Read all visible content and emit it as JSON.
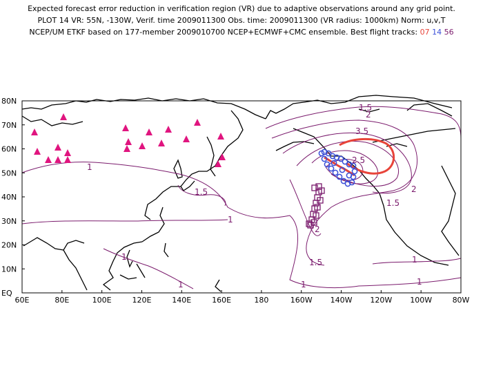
{
  "header": {
    "line1": "Expected forecast error reduction in verification region (VR) due to adaptive observations around any grid point.",
    "line2": "PLOT 14 VR: 55N, -130W, Verif. time 2009011300 Obs. time: 2009011300 (VR radius: 1000km) Norm: u,v,T",
    "line3": "NCEP/UM ETKF based on 177-member 2009010700 NCEP+ECMWF+CMC ensemble. Best flight tracks:",
    "tracks": [
      "07",
      "14",
      "56"
    ]
  },
  "map": {
    "lat_labels": [
      "80N",
      "70N",
      "60N",
      "50N",
      "40N",
      "30N",
      "20N",
      "10N",
      "EQ"
    ],
    "lon_labels": [
      "60E",
      "80E",
      "100E",
      "120E",
      "140E",
      "160E",
      "180",
      "160W",
      "140W",
      "120W",
      "100W",
      "80W"
    ],
    "contour_labels": [
      "1",
      "1.5",
      "2",
      "2.5",
      "3.5",
      "1.5",
      "1",
      "2",
      "1.5",
      "1.5",
      "1",
      "1",
      "1",
      "1",
      "1",
      "2"
    ],
    "colors": {
      "contour": "#7a1a6c",
      "track07": "#e8443a",
      "track14": "#3a4fd8",
      "track56": "#7a1a6c",
      "triangles": "#e0157f"
    }
  }
}
